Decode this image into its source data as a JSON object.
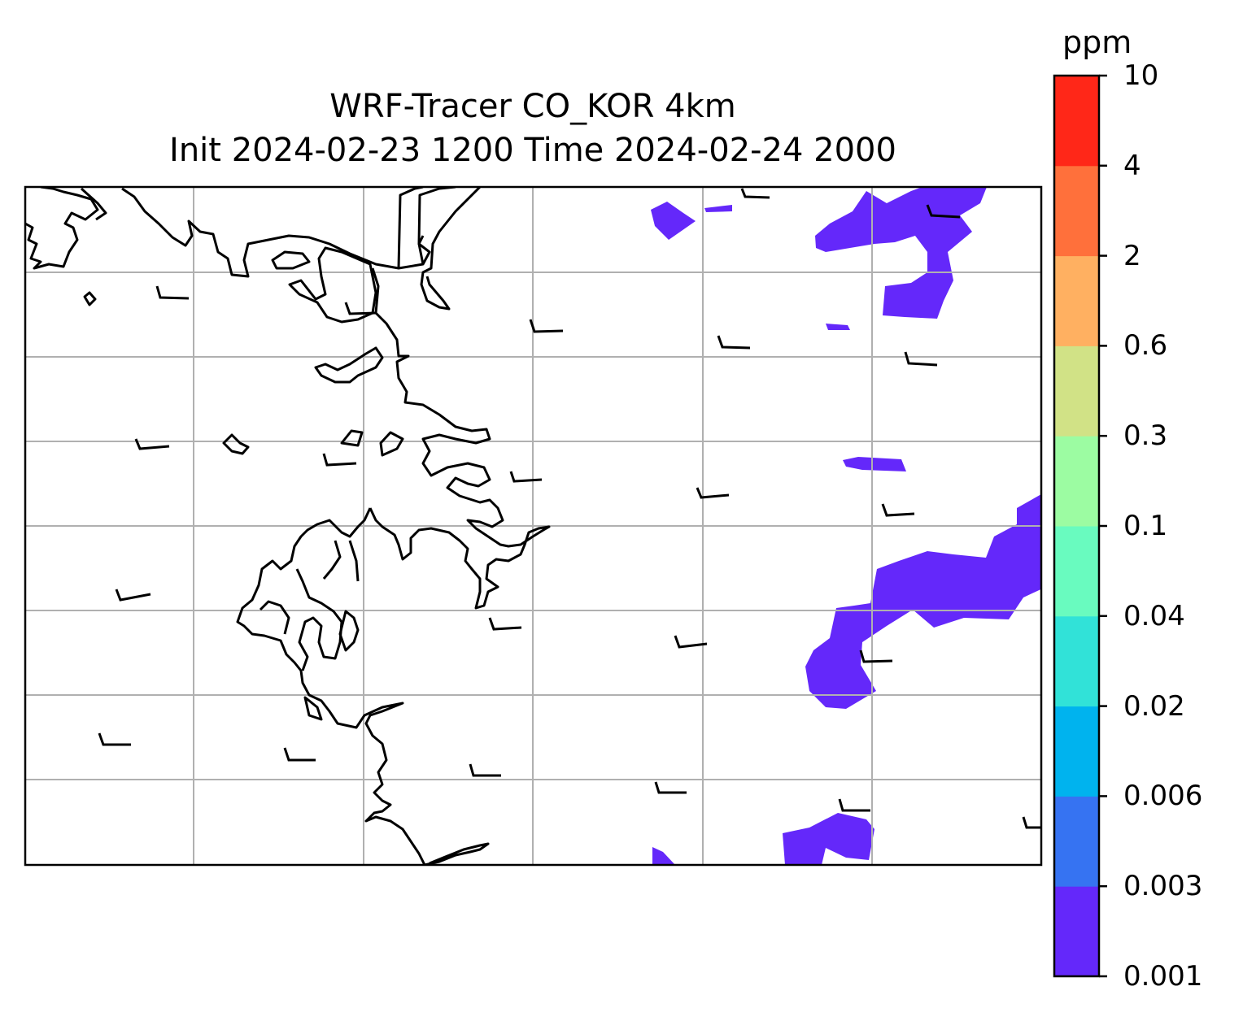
{
  "title": {
    "line1": "WRF-Tracer CO_KOR 4km",
    "line2": "Init 2024-02-23 1200 Time 2024-02-24 2000"
  },
  "colorbar": {
    "unit": "ppm",
    "levels": [
      "0.001",
      "0.003",
      "0.006",
      "0.02",
      "0.04",
      "0.1",
      "0.3",
      "0.6",
      "2",
      "4",
      "10"
    ],
    "colors": [
      "#6428fa",
      "#3673f2",
      "#00b3ee",
      "#31e2d8",
      "#69fbbf",
      "#9cfca2",
      "#d1e286",
      "#ffb061",
      "#ff703b",
      "#ff2718"
    ]
  },
  "map": {
    "gridlines": true,
    "grid_color": "#b0b0b0",
    "coastline_color": "#000000",
    "tracer_fill_bin": "0.001-0.003",
    "wind_barbs_shown": true
  }
}
